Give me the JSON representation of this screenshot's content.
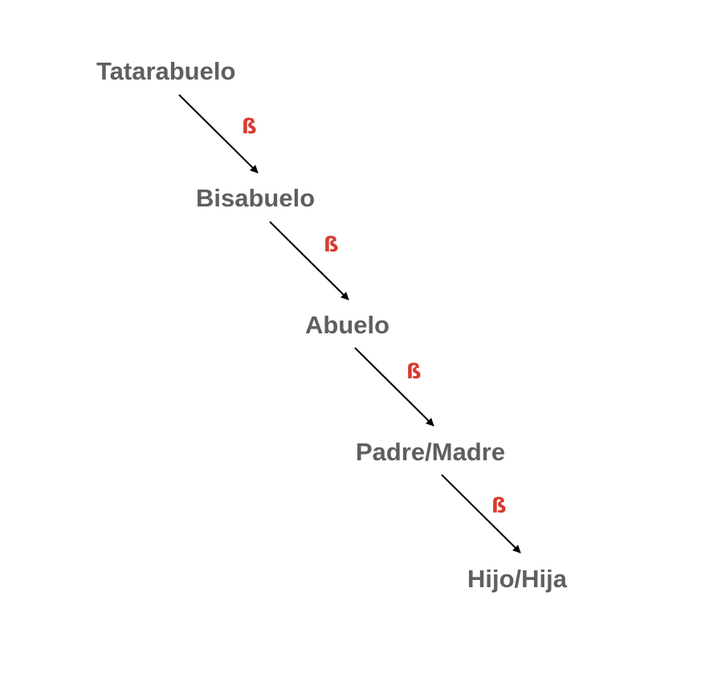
{
  "diagram": {
    "nodes": [
      {
        "id": "tatarabuelo",
        "label": "Tatarabuelo"
      },
      {
        "id": "bisabuelo",
        "label": "Bisabuelo"
      },
      {
        "id": "abuelo",
        "label": "Abuelo"
      },
      {
        "id": "padre-madre",
        "label": "Padre/Madre"
      },
      {
        "id": "hijo-hija",
        "label": "Hijo/Hija"
      }
    ],
    "edges": [
      {
        "from": "tatarabuelo",
        "to": "bisabuelo",
        "label": "ß"
      },
      {
        "from": "bisabuelo",
        "to": "abuelo",
        "label": "ß"
      },
      {
        "from": "abuelo",
        "to": "padre-madre",
        "label": "ß"
      },
      {
        "from": "padre-madre",
        "to": "hijo-hija",
        "label": "ß"
      }
    ],
    "colors": {
      "node_text": "#5f5f5f",
      "edge_label": "#d83a2e",
      "arrow": "#000000"
    }
  }
}
